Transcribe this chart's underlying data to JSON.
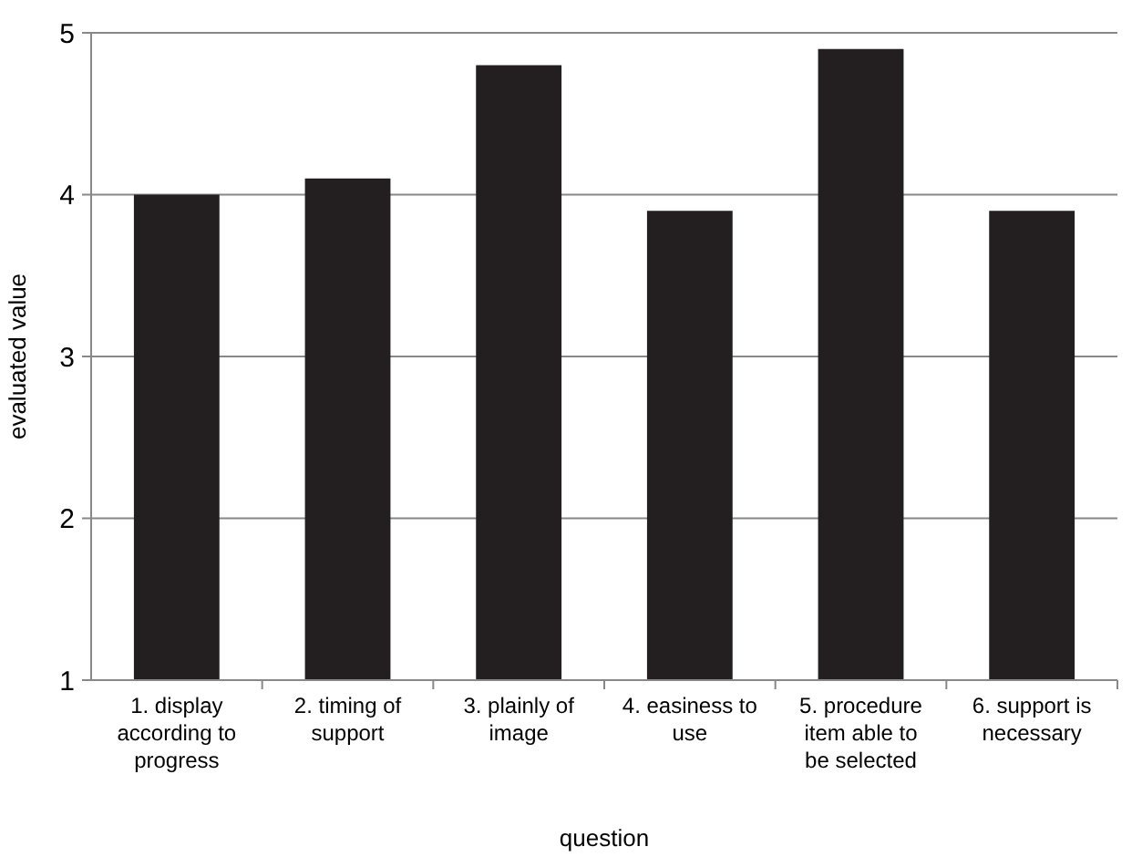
{
  "chart_data": {
    "type": "bar",
    "xlabel": "question",
    "ylabel": "evaluated value",
    "categories": [
      "1. display according to progress",
      "2. timing of support",
      "3. plainly of image",
      "4. easiness to use",
      "5. procedure item able to be selected",
      "6. support is necessary"
    ],
    "values": [
      4.0,
      4.1,
      4.8,
      3.9,
      4.9,
      3.9
    ],
    "color": "#231f20",
    "ylim": [
      1,
      5
    ],
    "yticks": [
      1,
      2,
      3,
      4,
      5
    ],
    "grid": "y"
  }
}
